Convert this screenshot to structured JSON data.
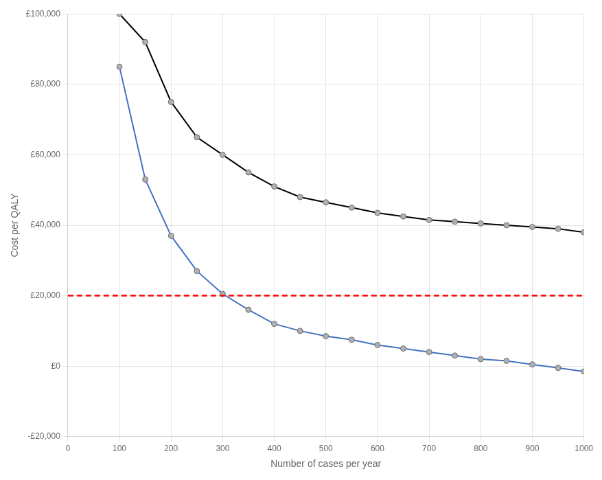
{
  "chart_data": {
    "type": "line",
    "x": [
      100,
      150,
      200,
      250,
      300,
      350,
      400,
      450,
      500,
      550,
      600,
      650,
      700,
      750,
      800,
      850,
      900,
      950,
      1000
    ],
    "series": [
      {
        "color": "#000000",
        "marker": "o",
        "values": [
          100000,
          92000,
          75000,
          65000,
          60000,
          55000,
          51000,
          48000,
          46500,
          45000,
          43500,
          42500,
          41500,
          41000,
          40500,
          40000,
          39500,
          39000,
          38000
        ]
      },
      {
        "color": "#4472C4",
        "marker": "o",
        "values": [
          85000,
          53000,
          37000,
          27000,
          20500,
          16000,
          12000,
          10000,
          8500,
          7500,
          6000,
          5000,
          4000,
          3000,
          2000,
          1500,
          500,
          -500,
          -1500
        ]
      },
      {
        "color": "#FF0000",
        "marker": "none",
        "line_style": "dashed",
        "x": [
          0,
          1000
        ],
        "values": [
          20000,
          20000
        ]
      }
    ],
    "x_label": "Number of cases per year",
    "y_label": "Cost per QALY",
    "xlim": [
      0,
      1000
    ],
    "ylim": [
      -20000,
      100000
    ],
    "xticks": [
      0,
      100,
      200,
      300,
      400,
      500,
      600,
      700,
      800,
      900,
      1000
    ],
    "yticks": [
      {
        "value": -20000,
        "label": "-£20,000"
      },
      {
        "value": 0,
        "label": "£0"
      },
      {
        "value": 20000,
        "label": "£20,000"
      },
      {
        "value": 40000,
        "label": "£40,000"
      },
      {
        "value": 60000,
        "label": "£60,000"
      },
      {
        "value": 80000,
        "label": "£80,000"
      },
      {
        "value": 100000,
        "label": "£100,000"
      }
    ],
    "grid": true
  }
}
